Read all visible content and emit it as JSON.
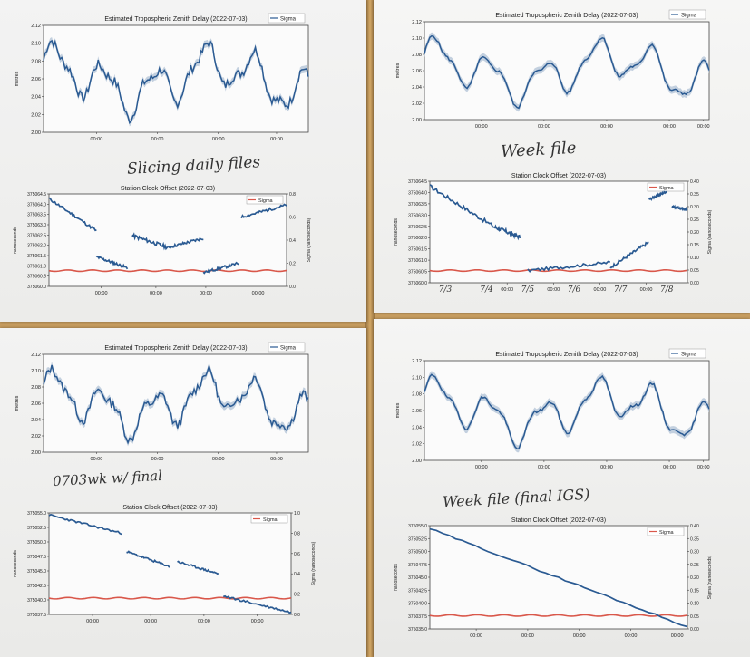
{
  "ztd_title": "Estimated Tropospheric Zenith Delay (2022-07-03)",
  "clock_title": "Station Clock Offset (2022-07-03)",
  "legend_sigma": "Sigma",
  "tick_time": "00:00",
  "y_metres": "metres",
  "y_nanoseconds": "nanoseconds",
  "y_sigma": "Sigma (nanoseconds)",
  "ztd_ticks": [
    "2.00",
    "2.02",
    "2.04",
    "2.06",
    "2.08",
    "2.10",
    "2.12"
  ],
  "clock_tl_ticks": [
    "375060.0",
    "375060.5",
    "375061.0",
    "375061.5",
    "375062.0",
    "375062.5",
    "375063.0",
    "375063.5",
    "375064.0",
    "375064.5"
  ],
  "clock_tl_sigma_ticks": [
    "0.0",
    "0.2",
    "0.4",
    "0.6",
    "0.8"
  ],
  "clock_tr_ticks": [
    "375060.0",
    "375060.5",
    "375061.0",
    "375061.5",
    "375062.0",
    "375062.5",
    "375063.0",
    "375063.5",
    "375064.0",
    "375064.5"
  ],
  "clock_tr_sigma_ticks": [
    "0.00",
    "0.05",
    "0.10",
    "0.15",
    "0.20",
    "0.25",
    "0.30",
    "0.35",
    "0.40"
  ],
  "clock_bl_ticks": [
    "375037.5",
    "375040.0",
    "375042.5",
    "375045.0",
    "375047.5",
    "375050.0",
    "375052.5",
    "375055.0"
  ],
  "clock_bl_sigma_ticks": [
    "0.0",
    "0.2",
    "0.4",
    "0.6",
    "0.8",
    "1.0"
  ],
  "clock_br_ticks": [
    "375035.0",
    "375037.5",
    "375040.0",
    "375042.5",
    "375045.0",
    "375047.5",
    "375050.0",
    "375052.5",
    "375055.0"
  ],
  "clock_br_sigma_ticks": [
    "0.00",
    "0.05",
    "0.10",
    "0.15",
    "0.20",
    "0.25",
    "0.30",
    "0.35",
    "0.40"
  ],
  "handwriting": {
    "slicing": "Slicing daily files",
    "week": "Week file",
    "final": "0703wk w/ final",
    "week_final": "Week file (final IGS)",
    "dates": [
      "7/3",
      "7/4",
      "7/5",
      "7/6",
      "7/7",
      "7/8"
    ]
  },
  "colors": {
    "series": "#2a5a92",
    "band": "#b5c6d8",
    "sigma": "#d9574a"
  }
}
